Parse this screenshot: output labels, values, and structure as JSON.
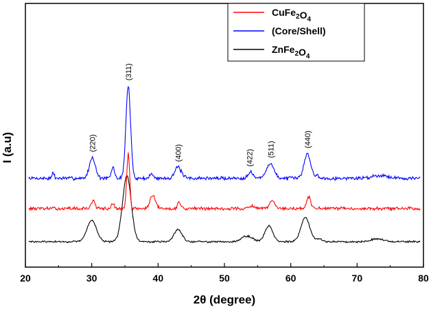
{
  "chart_data": {
    "type": "line",
    "xlabel": "2θ (degree)",
    "ylabel": "I (a.u)",
    "xlim": [
      20,
      80
    ],
    "x_ticks": [
      "20",
      "30",
      "40",
      "50",
      "60",
      "70",
      "80"
    ],
    "y_ticks_visible": false,
    "grid": false,
    "legend": {
      "placement": "top-right",
      "entries": [
        {
          "main": "CuFe",
          "sub1": "2",
          "mid": "O",
          "sub2": "4",
          "color": "#ff0000"
        },
        {
          "main": "(Core/Shell)",
          "sub1": "",
          "mid": "",
          "sub2": "",
          "color": "#0000ff"
        },
        {
          "main": "ZnFe",
          "sub1": "2",
          "mid": "O",
          "sub2": "4",
          "color": "#000000"
        }
      ]
    },
    "peak_labels": [
      {
        "text": "(220)",
        "x": 30.1
      },
      {
        "text": "(311)",
        "x": 35.5
      },
      {
        "text": "(400)",
        "x": 43.0
      },
      {
        "text": "(422)",
        "x": 53.8
      },
      {
        "text": "(511)",
        "x": 57.0
      },
      {
        "text": "(440)",
        "x": 62.5
      }
    ],
    "series": [
      {
        "color": "#0000ff",
        "offset": 2.2,
        "noise": 0.05,
        "seed": 7,
        "peaks": [
          [
            24.2,
            0.2,
            0.15
          ],
          [
            30.1,
            0.72,
            0.45
          ],
          [
            33.2,
            0.4,
            0.22
          ],
          [
            35.5,
            3.2,
            0.35
          ],
          [
            39.0,
            0.15,
            0.25
          ],
          [
            43.0,
            0.38,
            0.5
          ],
          [
            53.9,
            0.22,
            0.4
          ],
          [
            56.9,
            0.52,
            0.55
          ],
          [
            62.5,
            0.85,
            0.5
          ],
          [
            64.0,
            0.12,
            0.2
          ],
          [
            73.5,
            0.1,
            1.2
          ]
        ]
      },
      {
        "color": "#ff0000",
        "offset": 1.15,
        "noise": 0.045,
        "seed": 13,
        "peaks": [
          [
            30.2,
            0.3,
            0.25
          ],
          [
            33.2,
            0.18,
            0.2
          ],
          [
            35.5,
            1.9,
            0.22
          ],
          [
            39.2,
            0.45,
            0.4
          ],
          [
            43.2,
            0.22,
            0.25
          ],
          [
            54.0,
            0.1,
            0.3
          ],
          [
            57.2,
            0.28,
            0.35
          ],
          [
            62.7,
            0.4,
            0.3
          ]
        ]
      },
      {
        "color": "#000000",
        "offset": 0.0,
        "noise": 0.025,
        "seed": 29,
        "peaks": [
          [
            30.0,
            0.75,
            0.7
          ],
          [
            35.3,
            2.3,
            0.65
          ],
          [
            43.0,
            0.42,
            0.6
          ],
          [
            53.4,
            0.2,
            0.8
          ],
          [
            56.7,
            0.55,
            0.6
          ],
          [
            62.2,
            0.85,
            0.65
          ],
          [
            64.2,
            0.1,
            0.5
          ],
          [
            73.0,
            0.1,
            1.0
          ]
        ]
      }
    ]
  }
}
